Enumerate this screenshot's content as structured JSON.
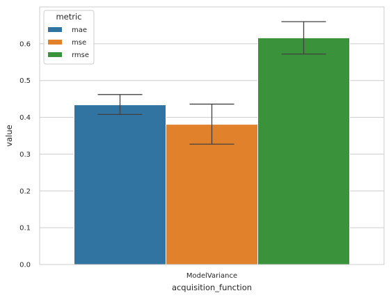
{
  "chart_data": {
    "type": "bar",
    "categories": [
      "ModelVariance"
    ],
    "series": [
      {
        "name": "mae",
        "values": [
          0.434
        ],
        "err_low": [
          0.408
        ],
        "err_high": [
          0.462
        ],
        "color": "#3274a1"
      },
      {
        "name": "mse",
        "values": [
          0.381
        ],
        "err_low": [
          0.327
        ],
        "err_high": [
          0.436
        ],
        "color": "#e1812c"
      },
      {
        "name": "rmse",
        "values": [
          0.616
        ],
        "err_low": [
          0.572
        ],
        "err_high": [
          0.66
        ],
        "color": "#3a923a"
      }
    ],
    "xlabel": "acquisition_function",
    "ylabel": "value",
    "ylim": [
      0,
      0.7
    ],
    "yticks": [
      0.0,
      0.1,
      0.2,
      0.3,
      0.4,
      0.5,
      0.6
    ],
    "ytick_labels": [
      "0.0",
      "0.1",
      "0.2",
      "0.3",
      "0.4",
      "0.5",
      "0.6"
    ],
    "grid": "horizontal",
    "legend": {
      "title": "metric",
      "placement": "top-left"
    }
  }
}
